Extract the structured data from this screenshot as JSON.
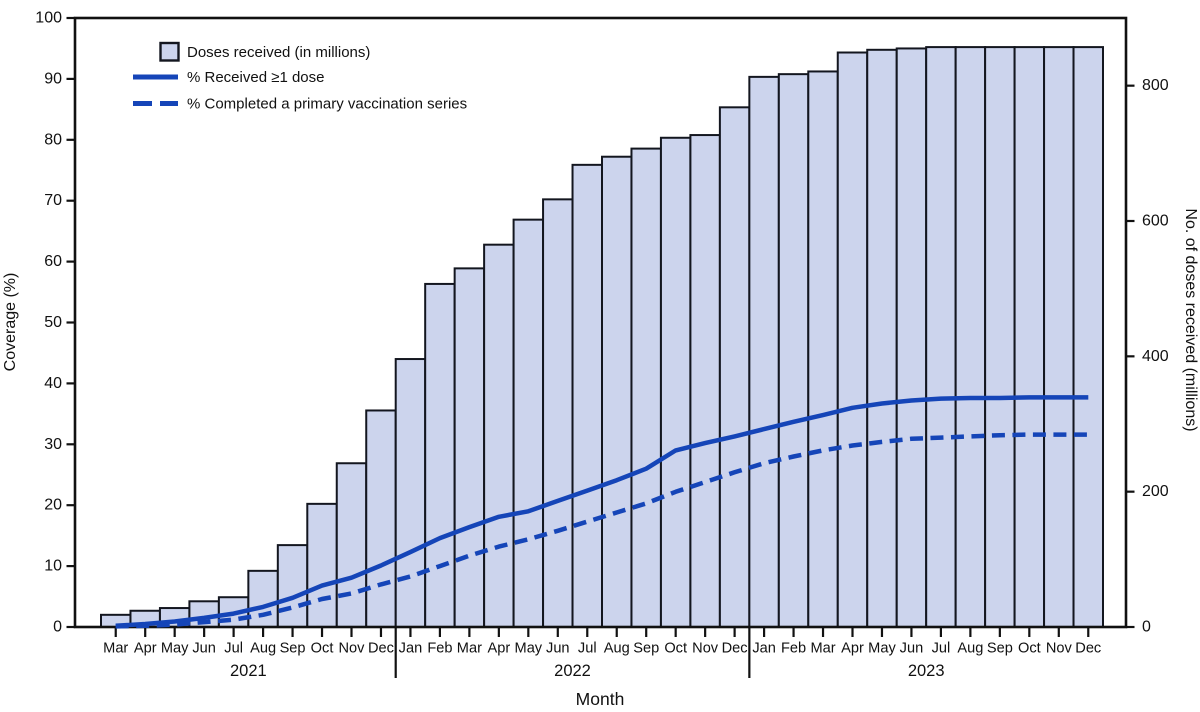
{
  "chart_data": {
    "type": "combo-bar-line",
    "title": "",
    "x": {
      "title": "Month",
      "years": [
        {
          "label": "2021",
          "months": [
            "Mar",
            "Apr",
            "May",
            "Jun",
            "Jul",
            "Aug",
            "Sep",
            "Oct",
            "Nov",
            "Dec"
          ]
        },
        {
          "label": "2022",
          "months": [
            "Jan",
            "Feb",
            "Mar",
            "Apr",
            "May",
            "Jun",
            "Jul",
            "Aug",
            "Sep",
            "Oct",
            "Nov",
            "Dec"
          ]
        },
        {
          "label": "2023",
          "months": [
            "Jan",
            "Feb",
            "Mar",
            "Apr",
            "May",
            "Jun",
            "Jul",
            "Aug",
            "Sep",
            "Oct",
            "Nov",
            "Dec"
          ]
        }
      ]
    },
    "left_axis": {
      "title": "Coverage (%)",
      "min": 0,
      "max": 100,
      "tick_step": 10,
      "tick_labels": [
        "0",
        "10",
        "20",
        "30",
        "40",
        "50",
        "60",
        "70",
        "80",
        "90",
        "100"
      ]
    },
    "right_axis": {
      "title": "No. of doses received (millions)",
      "min": 0,
      "max": 900,
      "ticks": [
        0,
        200,
        400,
        600,
        800
      ]
    },
    "grid": "off",
    "legend_position": "top-left-inside",
    "background": "#ffffff",
    "series": [
      {
        "name": "Doses received (in millions)",
        "type": "bar",
        "axis": "right",
        "color_fill": "#ccd4ed",
        "color_stroke": "#13161f",
        "values": [
          18,
          24,
          28,
          38,
          44,
          83,
          121,
          182,
          242,
          320,
          396,
          507,
          530,
          565,
          602,
          632,
          683,
          695,
          707,
          723,
          727,
          768,
          813,
          817,
          821,
          849,
          853,
          855,
          857,
          857,
          857,
          857,
          857,
          857
        ]
      },
      {
        "name": "% Received ≥1 dose",
        "type": "line",
        "line_style": "solid",
        "axis": "left",
        "color": "#1545b8",
        "values": [
          0.2,
          0.5,
          0.9,
          1.5,
          2.2,
          3.3,
          4.8,
          6.8,
          8.1,
          10.1,
          12.3,
          14.6,
          16.4,
          18.1,
          19.0,
          20.7,
          22.4,
          24.1,
          26.0,
          29.0,
          30.2,
          31.3,
          32.5,
          33.7,
          34.8,
          36.0,
          36.7,
          37.2,
          37.5,
          37.6,
          37.6,
          37.7,
          37.7,
          37.7
        ]
      },
      {
        "name": "% Completed a primary vaccination series",
        "type": "line",
        "line_style": "dashed",
        "axis": "left",
        "color": "#1545b8",
        "values": [
          0.1,
          0.2,
          0.4,
          0.8,
          1.2,
          2.0,
          3.2,
          4.6,
          5.5,
          7.0,
          8.3,
          10.0,
          11.7,
          13.2,
          14.4,
          15.8,
          17.3,
          18.8,
          20.3,
          22.2,
          23.8,
          25.4,
          26.9,
          28.0,
          29.0,
          29.8,
          30.4,
          30.9,
          31.1,
          31.3,
          31.5,
          31.6,
          31.6,
          31.6
        ]
      }
    ]
  }
}
